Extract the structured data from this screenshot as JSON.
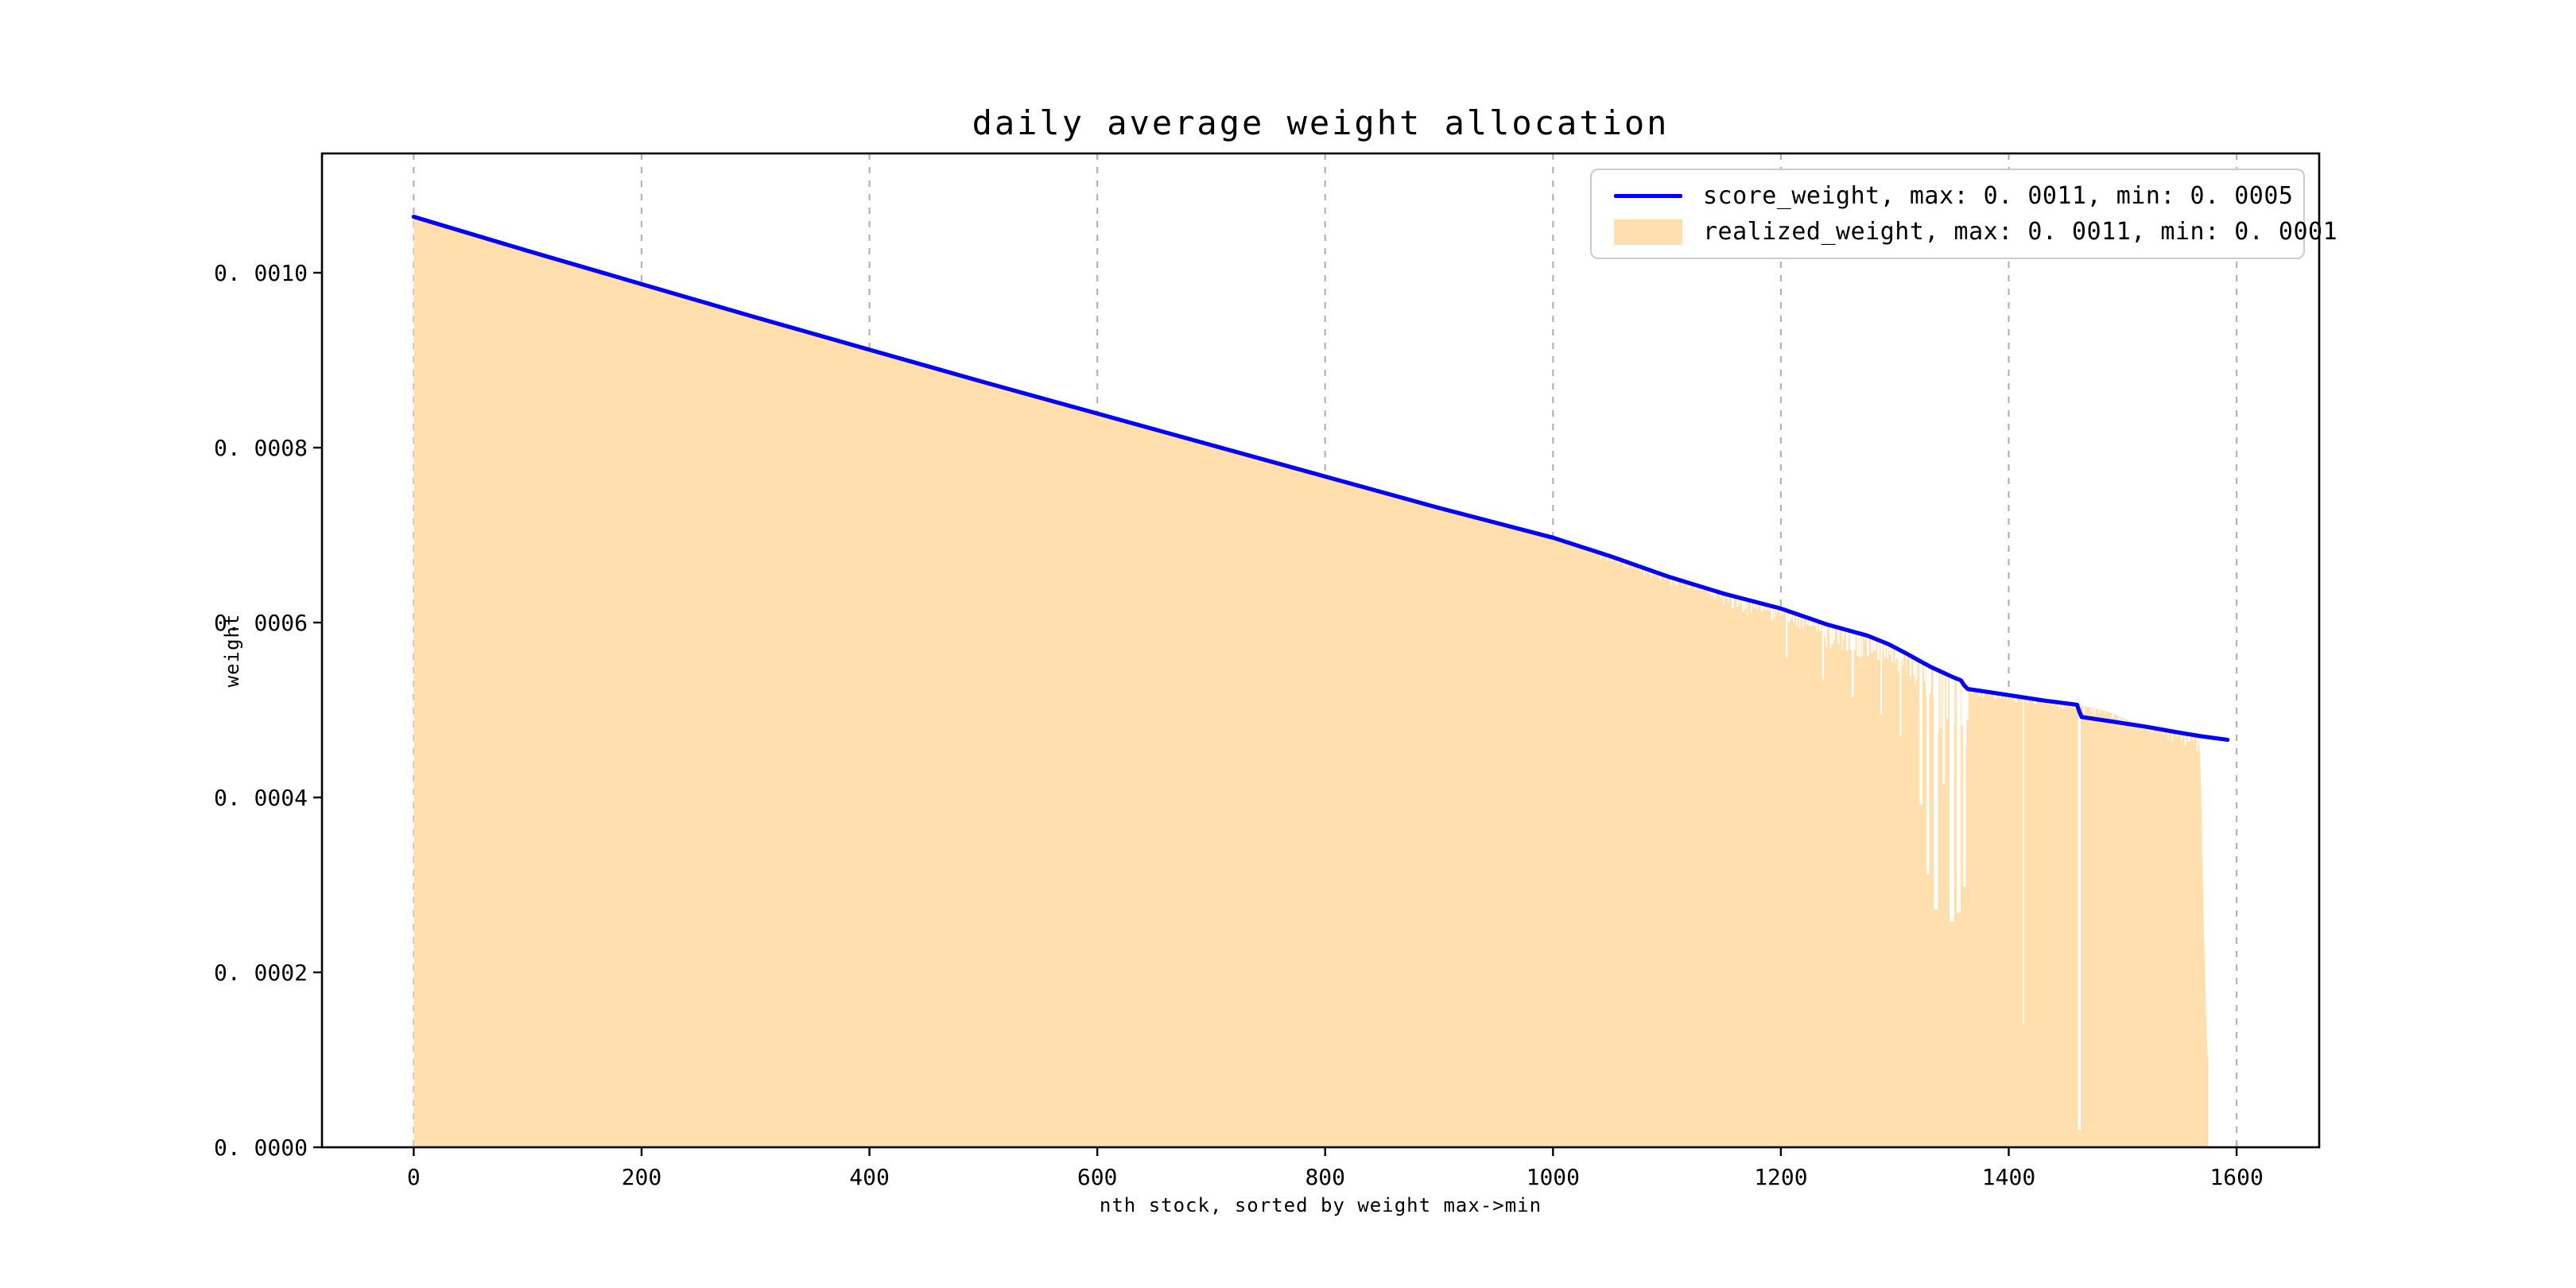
{
  "chart_data": {
    "type": "line",
    "title": "daily average weight allocation",
    "xlabel": "nth stock, sorted by weight max->min",
    "ylabel": "weight",
    "xlim": [
      -80.5,
      1672.5
    ],
    "ylim": [
      0,
      0.0011364
    ],
    "grid": "vertical-dashed",
    "x_ticks": {
      "values": [
        0,
        200,
        400,
        600,
        800,
        1000,
        1200,
        1400,
        1600
      ],
      "labels": [
        "0",
        "200",
        "400",
        "600",
        "800",
        "1000",
        "1200",
        "1400",
        "1600"
      ]
    },
    "y_ticks": {
      "values": [
        0,
        0.0002,
        0.0004,
        0.0006,
        0.0008,
        0.001
      ],
      "labels": [
        "0. 0000",
        "0. 0002",
        "0. 0004",
        "0. 0006",
        "0. 0008",
        "0. 0010"
      ]
    },
    "legend": {
      "position": "upper right",
      "entries": [
        {
          "swatch": "line",
          "color": "#0000ff",
          "label": "score_weight, max: 0. 0011, min: 0. 0005"
        },
        {
          "swatch": "patch",
          "color": "#ffdfad",
          "label": "realized_weight, max: 0. 0011, min: 0. 0001"
        }
      ]
    },
    "colors": {
      "line": "#0000ff",
      "fill": "#ffdfad",
      "grid": "#b3b3b3",
      "spine": "#000000",
      "background": "#ffffff"
    },
    "series": [
      {
        "name": "score_weight",
        "style": "line",
        "max": 0.0011,
        "min": 0.0005,
        "points": [
          [
            0,
            0.001064
          ],
          [
            100,
            0.001025
          ],
          [
            200,
            0.000987
          ],
          [
            300,
            0.000949
          ],
          [
            400,
            0.000912
          ],
          [
            500,
            0.000875
          ],
          [
            600,
            0.000839
          ],
          [
            700,
            0.000803
          ],
          [
            800,
            0.000767
          ],
          [
            900,
            0.000731
          ],
          [
            1000,
            0.000697
          ],
          [
            1050,
            0.000676
          ],
          [
            1100,
            0.000653
          ],
          [
            1150,
            0.000633
          ],
          [
            1200,
            0.000616
          ],
          [
            1240,
            0.000598
          ],
          [
            1276,
            0.000585
          ],
          [
            1295,
            0.000575
          ],
          [
            1311,
            0.000564
          ],
          [
            1322,
            0.000556
          ],
          [
            1332,
            0.000549
          ],
          [
            1342,
            0.000543
          ],
          [
            1352,
            0.000537
          ],
          [
            1358,
            0.000534
          ],
          [
            1361,
            0.000528
          ],
          [
            1364,
            0.000524
          ],
          [
            1380,
            0.000521
          ],
          [
            1400,
            0.000517
          ],
          [
            1430,
            0.000511
          ],
          [
            1460,
            0.000506
          ],
          [
            1462,
            0.000498
          ],
          [
            1464,
            0.000492
          ],
          [
            1490,
            0.000487
          ],
          [
            1520,
            0.000481
          ],
          [
            1550,
            0.000474
          ],
          [
            1569,
            0.00047
          ],
          [
            1580,
            0.000468
          ],
          [
            1592,
            0.000466
          ]
        ]
      },
      {
        "name": "realized_weight",
        "style": "area",
        "max": 0.0011,
        "min": 0.0001,
        "envelope": [
          [
            0,
            0.001064
          ],
          [
            100,
            0.001025
          ],
          [
            200,
            0.000987
          ],
          [
            300,
            0.000949
          ],
          [
            400,
            0.000912
          ],
          [
            500,
            0.000875
          ],
          [
            600,
            0.000839
          ],
          [
            700,
            0.000803
          ],
          [
            800,
            0.000767
          ],
          [
            900,
            0.000731
          ],
          [
            1000,
            0.000697
          ],
          [
            1050,
            0.000676
          ],
          [
            1100,
            0.000653
          ],
          [
            1150,
            0.000633
          ],
          [
            1200,
            0.000616
          ],
          [
            1240,
            0.000598
          ],
          [
            1276,
            0.000585
          ],
          [
            1295,
            0.000575
          ],
          [
            1311,
            0.000564
          ],
          [
            1322,
            0.000556
          ],
          [
            1332,
            0.000549
          ],
          [
            1342,
            0.000543
          ],
          [
            1352,
            0.000537
          ],
          [
            1358,
            0.000534
          ],
          [
            1361,
            0.000528
          ],
          [
            1364,
            0.000524
          ],
          [
            1380,
            0.000521
          ],
          [
            1400,
            0.000517
          ],
          [
            1430,
            0.000511
          ],
          [
            1460,
            0.000506
          ],
          [
            1463,
            0.000505
          ],
          [
            1475,
            0.000502
          ],
          [
            1490,
            0.000497
          ],
          [
            1505,
            0.000488
          ],
          [
            1520,
            0.000483
          ],
          [
            1550,
            0.000476
          ],
          [
            1560,
            0.000472
          ],
          [
            1567,
            0.00047
          ],
          [
            1568.5,
            0.000425
          ],
          [
            1569.5,
            0.00036
          ],
          [
            1570.5,
            0.000295
          ],
          [
            1571.5,
            0.000235
          ],
          [
            1572.5,
            0.000185
          ],
          [
            1573.5,
            0.00014
          ],
          [
            1574.5,
            0.000108
          ],
          [
            1575,
            0.0001
          ]
        ],
        "notches": [
          {
            "x": 1205,
            "v": 0.00056,
            "w": 1.5
          },
          {
            "x": 1237,
            "v": 0.000535,
            "w": 1.5
          },
          {
            "x": 1263,
            "v": 0.000515,
            "w": 2
          },
          {
            "x": 1288,
            "v": 0.000495,
            "w": 1.5
          },
          {
            "x": 1305,
            "v": 0.00047,
            "w": 1.5
          },
          {
            "x": 1323,
            "v": 0.000392,
            "w": 2.5
          },
          {
            "x": 1329,
            "v": 0.000312,
            "w": 2.5
          },
          {
            "x": 1336,
            "v": 0.000272,
            "w": 3.5
          },
          {
            "x": 1343,
            "v": 0.000415,
            "w": 2
          },
          {
            "x": 1350,
            "v": 0.000258,
            "w": 4
          },
          {
            "x": 1356,
            "v": 0.000268,
            "w": 3.5
          },
          {
            "x": 1361,
            "v": 0.000298,
            "w": 2.5
          },
          {
            "x": 1413,
            "v": 0.00014,
            "w": 1.2
          },
          {
            "x": 1462,
            "v": 2e-05,
            "w": 2.2
          }
        ],
        "noise_segments": [
          {
            "x0": 1042,
            "x1": 1150,
            "amp": 9e-06,
            "step": 4
          },
          {
            "x0": 1150,
            "x1": 1240,
            "amp": 1.7e-05,
            "step": 3
          },
          {
            "x0": 1240,
            "x1": 1318,
            "amp": 2.8e-05,
            "step": 2.5
          },
          {
            "x0": 1318,
            "x1": 1364,
            "amp": 7.5e-05,
            "step": 2.5
          },
          {
            "x0": 1368,
            "x1": 1458,
            "amp": 7e-06,
            "step": 5
          },
          {
            "x0": 1466,
            "x1": 1540,
            "amp": 8e-06,
            "step": 5
          },
          {
            "x0": 1540,
            "x1": 1566,
            "amp": 2e-05,
            "step": 3
          }
        ]
      }
    ]
  }
}
